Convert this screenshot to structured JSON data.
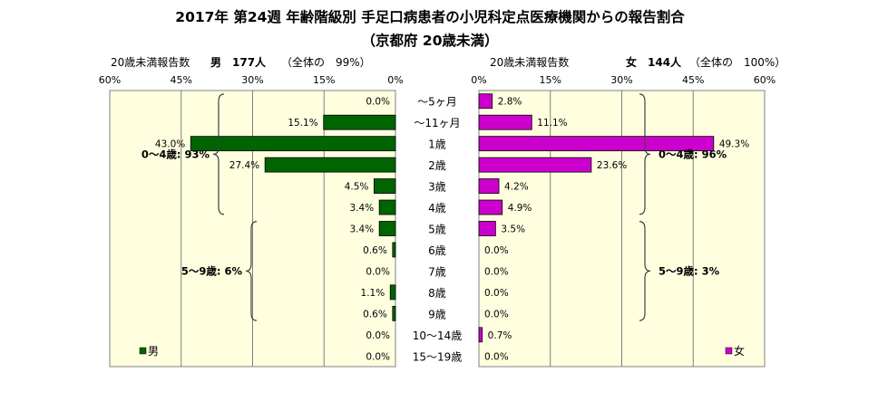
{
  "title": "2017年 第24週 年齢階級別 手足口病患者の小児科定点医療機関からの報告割合",
  "subtitle": "（京都府 20歳未満）",
  "chart_data": [
    {
      "type": "bar",
      "orientation": "horizontal",
      "side": "left",
      "header_label": "20歳未満報告数",
      "header_sex_count": "男　177人",
      "header_share": "（全体の　99%）",
      "legend": "男",
      "legend_position": "bottom-left",
      "series": [
        {
          "name": "男",
          "color": "#006400",
          "values": [
            0.0,
            15.1,
            43.0,
            27.4,
            4.5,
            3.4,
            3.4,
            0.6,
            0.0,
            1.1,
            0.6,
            0.0,
            0.0
          ]
        }
      ],
      "value_labels": [
        "0.0%",
        "15.1%",
        "43.0%",
        "27.4%",
        "4.5%",
        "3.4%",
        "3.4%",
        "0.6%",
        "0.0%",
        "1.1%",
        "0.6%",
        "0.0%",
        "0.0%"
      ],
      "xlim": [
        0,
        60
      ],
      "x_reversed": true,
      "ticks": [
        60,
        45,
        30,
        15,
        0
      ],
      "tick_labels": [
        "60%",
        "45%",
        "30%",
        "15%",
        "0%"
      ],
      "grid": true,
      "brackets": [
        {
          "label": "0～4歳: 93%",
          "from_index": 0,
          "to_index": 5
        },
        {
          "label": "5～9歳: 6%",
          "from_index": 6,
          "to_index": 10
        }
      ]
    },
    {
      "type": "bar",
      "orientation": "horizontal",
      "side": "right",
      "header_label": "20歳未満報告数",
      "header_sex_count": "女　144人",
      "header_share": "（全体の　100%）",
      "legend": "女",
      "legend_position": "bottom-right",
      "series": [
        {
          "name": "女",
          "color": "#cc00cc",
          "values": [
            2.8,
            11.1,
            49.3,
            23.6,
            4.2,
            4.9,
            3.5,
            0.0,
            0.0,
            0.0,
            0.0,
            0.7,
            0.0
          ]
        }
      ],
      "value_labels": [
        "2.8%",
        "11.1%",
        "49.3%",
        "23.6%",
        "4.2%",
        "4.9%",
        "3.5%",
        "0.0%",
        "0.0%",
        "0.0%",
        "0.0%",
        "0.7%",
        "0.0%"
      ],
      "xlim": [
        0,
        60
      ],
      "ticks": [
        0,
        15,
        30,
        45,
        60
      ],
      "tick_labels": [
        "0%",
        "15%",
        "30%",
        "45%",
        "60%"
      ],
      "grid": true,
      "brackets": [
        {
          "label": "0～4歳: 96%",
          "from_index": 0,
          "to_index": 5
        },
        {
          "label": "5～9歳: 3%",
          "from_index": 6,
          "to_index": 10
        }
      ]
    }
  ],
  "categories": [
    "～5ヶ月",
    "～11ヶ月",
    "1歳",
    "2歳",
    "3歳",
    "4歳",
    "5歳",
    "6歳",
    "7歳",
    "8歳",
    "9歳",
    "10～14歳",
    "15～19歳"
  ],
  "colors": {
    "male": "#006400",
    "female": "#cc00cc",
    "plot_bg": "#ffffe0"
  }
}
